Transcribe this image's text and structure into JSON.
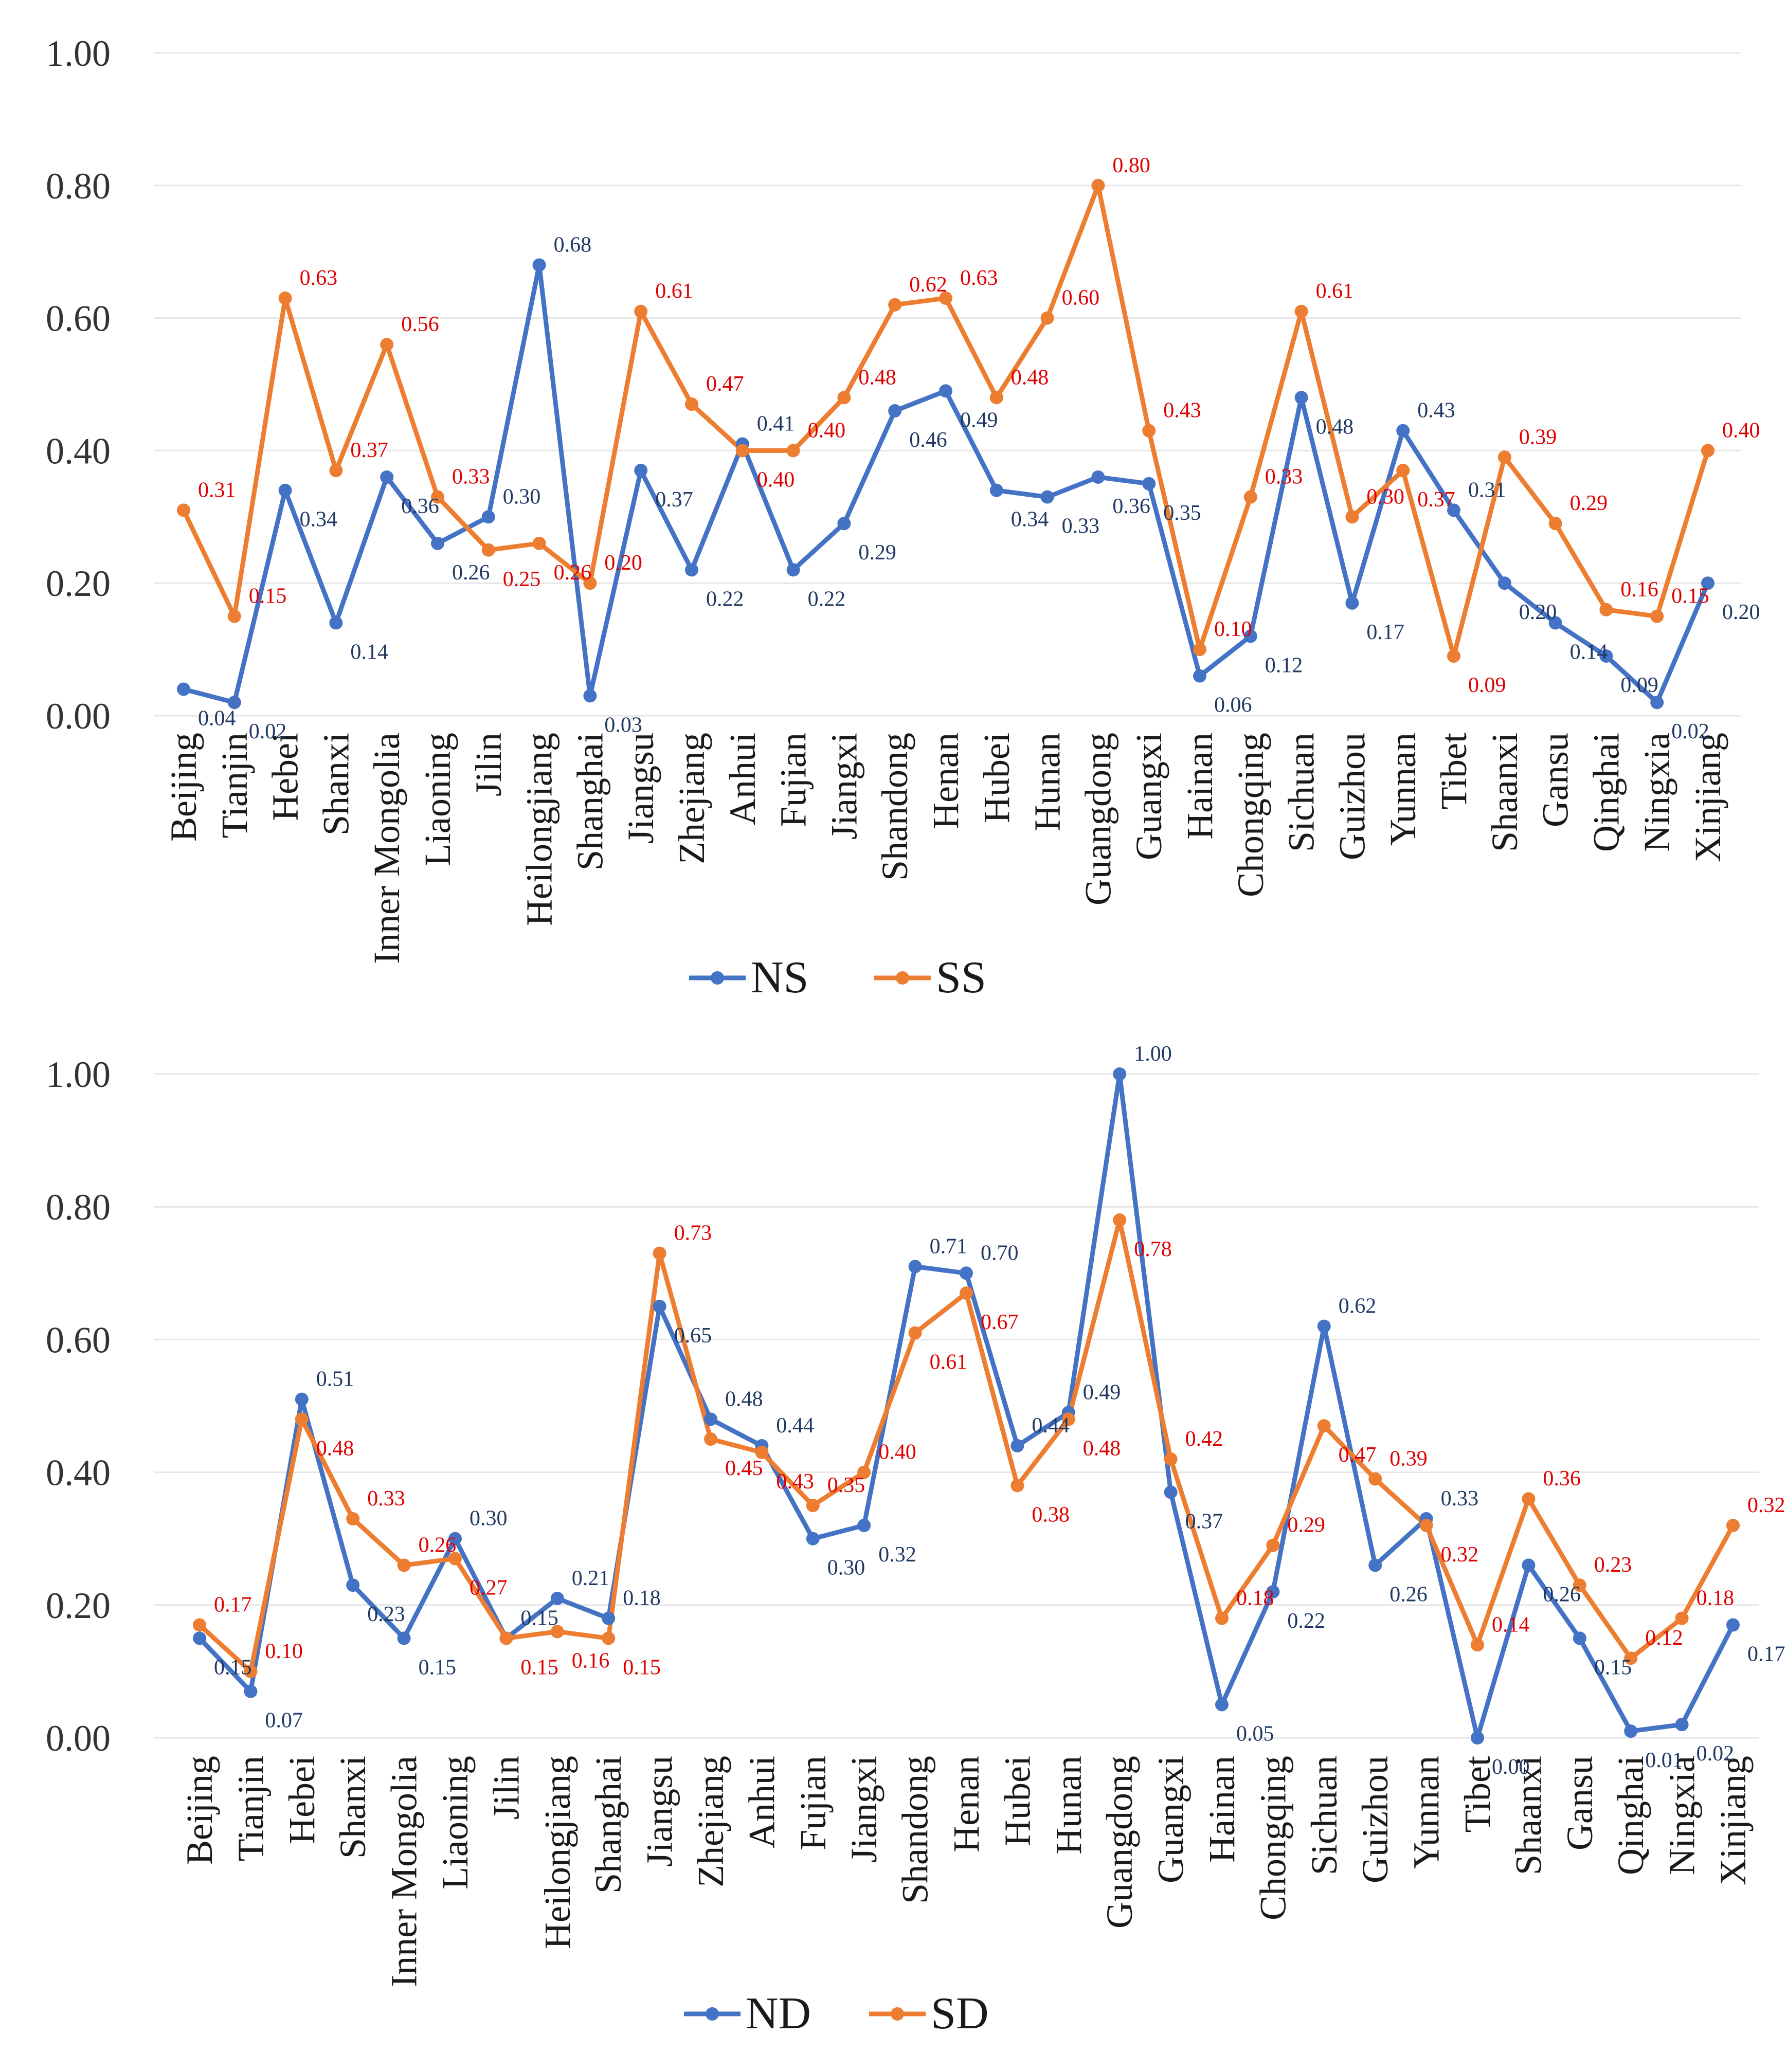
{
  "colors": {
    "blue": "#4472C4",
    "orange": "#ED7D31",
    "blue_label": "#1F3864",
    "red_label": "#E00000"
  },
  "chart_data": [
    {
      "type": "line",
      "title": "",
      "xlabel": "",
      "ylabel": "",
      "ylim": [
        0,
        1
      ],
      "yticks": [
        "0.00",
        "0.20",
        "0.40",
        "0.60",
        "0.80",
        "1.00"
      ],
      "grid": true,
      "legend_position": "bottom",
      "categories": [
        "Beijing",
        "Tianjin",
        "Hebei",
        "Shanxi",
        "Inner Mongolia",
        "Liaoning",
        "Jilin",
        "Heilongjiang",
        "Shanghai",
        "Jiangsu",
        "Zhejiang",
        "Anhui",
        "Fujian",
        "Jiangxi",
        "Shandong",
        "Henan",
        "Hubei",
        "Hunan",
        "Guangdong",
        "Guangxi",
        "Hainan",
        "Chongqing",
        "Sichuan",
        "Guizhou",
        "Yunnan",
        "Tibet",
        "Shaanxi",
        "Gansu",
        "Qinghai",
        "Ningxia",
        "Xinjiang"
      ],
      "series": [
        {
          "name": "NS",
          "color": "#4472C4",
          "values": [
            0.04,
            0.02,
            0.34,
            0.14,
            0.36,
            0.26,
            0.3,
            0.68,
            0.03,
            0.37,
            0.22,
            0.41,
            0.22,
            0.29,
            0.46,
            0.49,
            0.34,
            0.33,
            0.36,
            0.35,
            0.06,
            0.12,
            0.48,
            0.17,
            0.43,
            0.31,
            0.2,
            0.14,
            0.09,
            0.02,
            0.2
          ],
          "labels": [
            "0.04",
            "0.02",
            "0.34",
            "0.14",
            "0.36",
            "0.26",
            "0.30",
            "0.68",
            "0.03",
            "0.37",
            "0.22",
            "0.41",
            "0.22",
            "0.29",
            "0.46",
            "0.49",
            "0.34",
            "0.33",
            "0.36",
            "0.35",
            "0.06",
            "0.12",
            "0.48",
            "0.17",
            "0.43",
            "0.31",
            "0.20",
            "0.14",
            "0.09",
            "0.02",
            "0.20"
          ]
        },
        {
          "name": "SS",
          "color": "#ED7D31",
          "values": [
            0.31,
            0.15,
            0.63,
            0.37,
            0.56,
            0.33,
            0.25,
            0.26,
            0.2,
            0.61,
            0.47,
            0.4,
            0.4,
            0.48,
            0.62,
            0.63,
            0.48,
            0.6,
            0.8,
            0.43,
            0.1,
            0.33,
            0.61,
            0.3,
            0.37,
            0.09,
            0.39,
            0.29,
            0.16,
            0.15,
            0.4
          ],
          "labels": [
            "0.31",
            "0.15",
            "0.63",
            "0.37",
            "0.56",
            "0.33",
            "0.25",
            "0.26",
            "0.20",
            "0.61",
            "0.47",
            "0.40",
            "0.40",
            "0.48",
            "0.62",
            "0.63",
            "0.48",
            "0.60",
            "0.80",
            "0.43",
            "0.10",
            "0.33",
            "0.61",
            "0.30",
            "0.37",
            "0.09",
            "0.39",
            "0.29",
            "0.16",
            "0.15",
            "0.40"
          ]
        }
      ]
    },
    {
      "type": "line",
      "title": "",
      "xlabel": "",
      "ylabel": "",
      "ylim": [
        0,
        1
      ],
      "yticks": [
        "0.00",
        "0.20",
        "0.40",
        "0.60",
        "0.80",
        "1.00"
      ],
      "grid": true,
      "legend_position": "bottom",
      "categories": [
        "Beijing",
        "Tianjin",
        "Hebei",
        "Shanxi",
        "Inner Mongolia",
        "Liaoning",
        "Jilin",
        "Heilongjiang",
        "Shanghai",
        "Jiangsu",
        "Zhejiang",
        "Anhui",
        "Fujian",
        "Jiangxi",
        "Shandong",
        "Henan",
        "Hubei",
        "Hunan",
        "Guangdong",
        "Guangxi",
        "Hainan",
        "Chongqing",
        "Sichuan",
        "Guizhou",
        "Yunnan",
        "Tibet",
        "Shaanxi",
        "Gansu",
        "Qinghai",
        "Ningxia",
        "Xinjiang"
      ],
      "series": [
        {
          "name": "ND",
          "color": "#4472C4",
          "values": [
            0.15,
            0.07,
            0.51,
            0.23,
            0.15,
            0.3,
            0.15,
            0.21,
            0.18,
            0.65,
            0.48,
            0.44,
            0.3,
            0.32,
            0.71,
            0.7,
            0.44,
            0.49,
            1.0,
            0.37,
            0.05,
            0.22,
            0.62,
            0.26,
            0.33,
            0.0,
            0.26,
            0.15,
            0.01,
            0.02,
            0.17
          ],
          "labels": [
            "0.15",
            "0.07",
            "0.51",
            "0.23",
            "0.15",
            "0.30",
            "0.15",
            "0.21",
            "0.18",
            "0.65",
            "0.48",
            "0.44",
            "0.30",
            "0.32",
            "0.71",
            "0.70",
            "0.44",
            "0.49",
            "1.00",
            "0.37",
            "0.05",
            "0.22",
            "0.62",
            "0.26",
            "0.33",
            "0.00",
            "0.26",
            "0.15",
            "0.01",
            "0.02",
            "0.17"
          ]
        },
        {
          "name": "SD",
          "color": "#ED7D31",
          "values": [
            0.17,
            0.1,
            0.48,
            0.33,
            0.26,
            0.27,
            0.15,
            0.16,
            0.15,
            0.73,
            0.45,
            0.43,
            0.35,
            0.4,
            0.61,
            0.67,
            0.38,
            0.48,
            0.78,
            0.42,
            0.18,
            0.29,
            0.47,
            0.39,
            0.32,
            0.14,
            0.36,
            0.23,
            0.12,
            0.18,
            0.32
          ],
          "labels": [
            "0.17",
            "0.10",
            "0.48",
            "0.33",
            "0.26",
            "0.27",
            "0.15",
            "0.16",
            "0.15",
            "0.73",
            "0.45",
            "0.43",
            "0.35",
            "0.40",
            "0.61",
            "0.67",
            "0.38",
            "0.48",
            "0.78",
            "0.42",
            "0.18",
            "0.29",
            "0.47",
            "0.39",
            "0.32",
            "0.14",
            "0.36",
            "0.23",
            "0.12",
            "0.18",
            "0.32"
          ]
        }
      ]
    }
  ]
}
